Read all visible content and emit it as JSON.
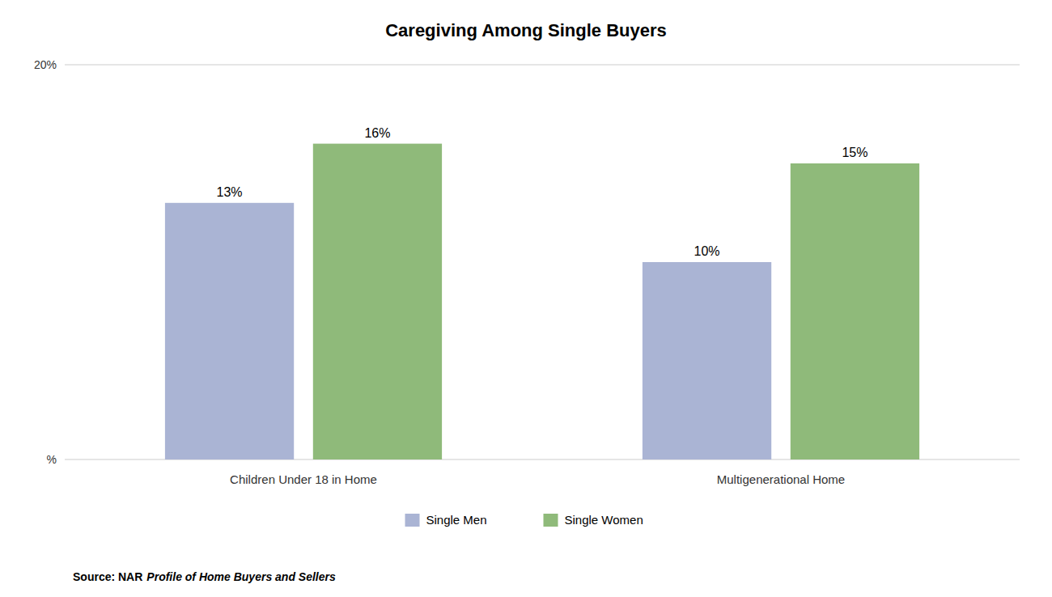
{
  "chart_data": {
    "type": "bar",
    "title": "Caregiving Among Single Buyers",
    "categories": [
      "Children Under 18 in Home",
      "Multigenerational Home"
    ],
    "series": [
      {
        "name": "Single Men",
        "color": "#aab4d4",
        "values": [
          13,
          10
        ],
        "value_labels": [
          "13%",
          "10%"
        ]
      },
      {
        "name": "Single Women",
        "color": "#8fba7a",
        "values": [
          16,
          15
        ],
        "value_labels": [
          "16%",
          "15%"
        ]
      }
    ],
    "ylim": [
      0,
      20
    ],
    "yticks": [
      {
        "value": 0,
        "label": "%"
      },
      {
        "value": 20,
        "label": "20%"
      }
    ],
    "grid": true,
    "legend": "bottom",
    "data_labels": true,
    "annotations": [
      "Source: NAR",
      "Profile of Home Buyers and Sellers"
    ]
  }
}
